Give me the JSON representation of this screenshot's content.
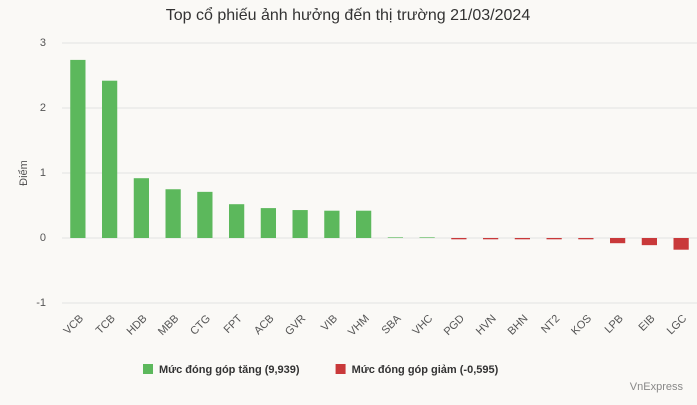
{
  "chart_data": {
    "type": "bar",
    "title": "Top cổ phiếu ảnh hưởng đến thị trường 21/03/2024",
    "y_label": "Điểm",
    "source": "VnExpress",
    "categories": [
      "VCB",
      "TCB",
      "HDB",
      "MBB",
      "CTG",
      "FPT",
      "ACB",
      "GVR",
      "VIB",
      "VHM",
      "SBA",
      "VHC",
      "PGD",
      "HVN",
      "BHN",
      "NT2",
      "KOS",
      "LPB",
      "EIB",
      "LGC"
    ],
    "series": [
      {
        "name": "Mức đóng góp tăng (9,939)",
        "color": "#5cb85c",
        "values": [
          2.74,
          2.42,
          0.92,
          0.75,
          0.71,
          0.52,
          0.46,
          0.43,
          0.42,
          0.42,
          0.01,
          0.01,
          null,
          null,
          null,
          null,
          null,
          null,
          null,
          null
        ]
      },
      {
        "name": "Mức đóng góp giảm (-0,595)",
        "color": "#c9393a",
        "values": [
          null,
          null,
          null,
          null,
          null,
          null,
          null,
          null,
          null,
          null,
          null,
          null,
          -0.02,
          -0.02,
          -0.02,
          -0.02,
          -0.02,
          -0.08,
          -0.11,
          -0.18
        ]
      }
    ],
    "ylim": [
      -1,
      3
    ],
    "yticks": [
      -1,
      0,
      1,
      2,
      3
    ],
    "grid": true
  }
}
